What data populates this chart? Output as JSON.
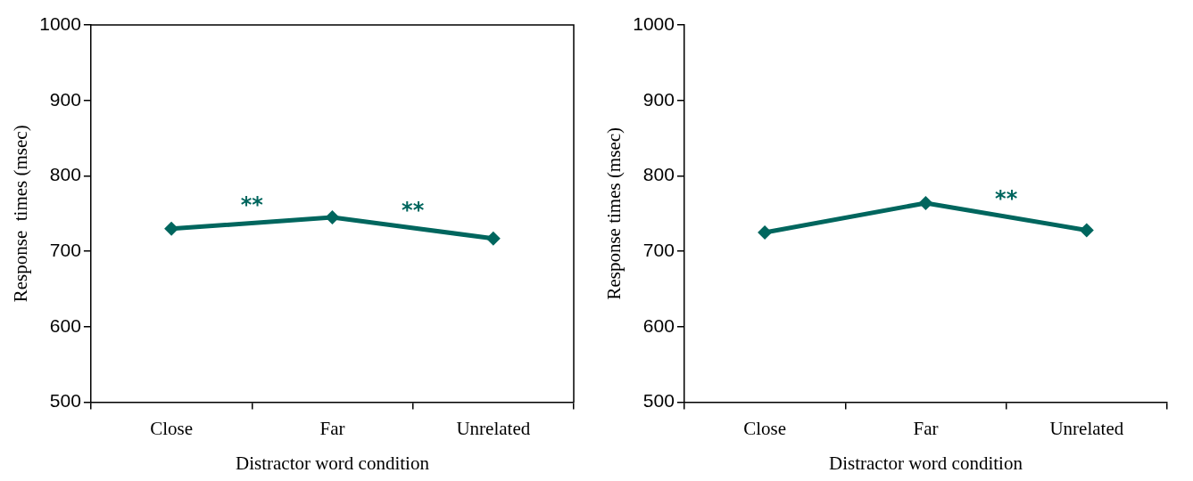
{
  "chart_data": [
    {
      "type": "line",
      "xlabel": "Distractor word condition",
      "ylabel": "Response  times (msec)",
      "categories": [
        "Close",
        "Far",
        "Unrelated"
      ],
      "series": [
        {
          "color": "#00665e",
          "values": [
            730,
            745,
            717
          ]
        }
      ],
      "ylim": [
        500,
        1000
      ],
      "yticks": [
        500,
        600,
        700,
        800,
        900,
        1000
      ],
      "grid": false,
      "legend": false,
      "marker": "diamond",
      "line_style": "solid",
      "annotations": [
        "**",
        "**"
      ]
    },
    {
      "type": "line",
      "xlabel": "Distractor word condition",
      "ylabel": "Response times (msec)",
      "categories": [
        "Close",
        "Far",
        "Unrelated"
      ],
      "series": [
        {
          "color": "#00665e",
          "values": [
            725,
            764,
            728
          ]
        }
      ],
      "ylim": [
        500,
        1000
      ],
      "yticks": [
        500,
        600,
        700,
        800,
        900,
        1000
      ],
      "grid": false,
      "legend": false,
      "marker": "diamond",
      "line_style": "solid",
      "annotations": [
        "**"
      ]
    }
  ]
}
